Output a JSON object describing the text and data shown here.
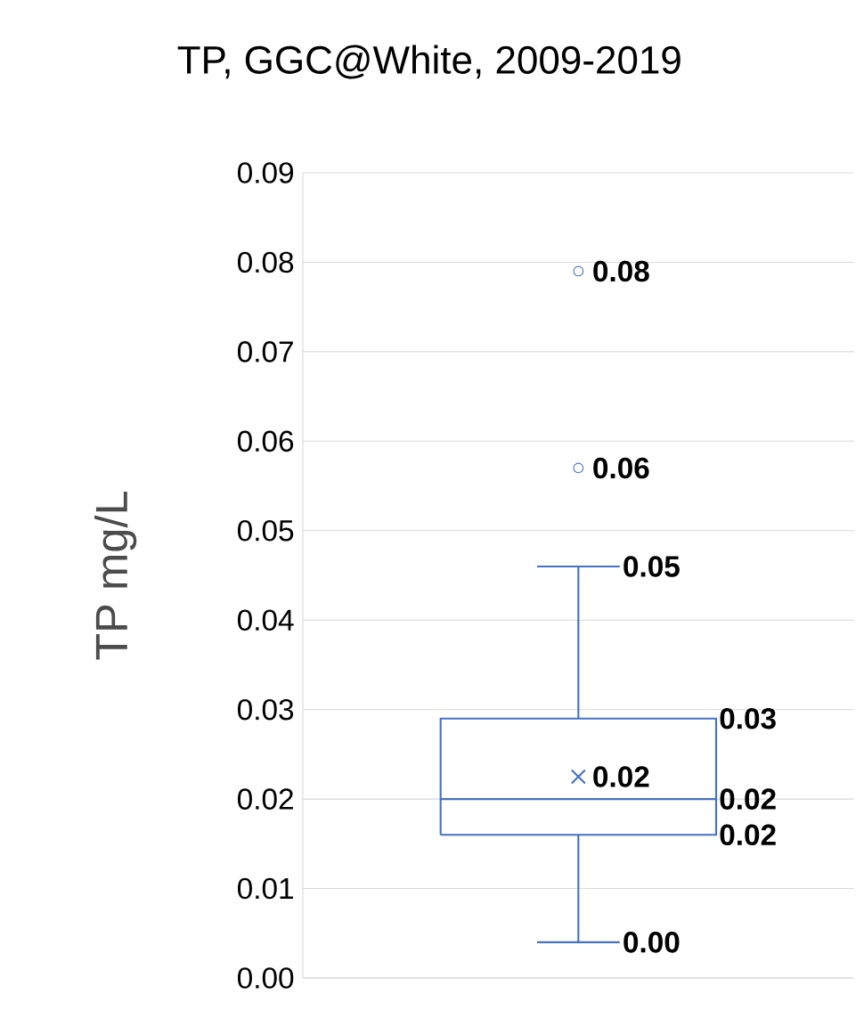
{
  "chart_data": {
    "type": "box",
    "title": "TP, GGC@White, 2009-2019",
    "ylabel": "TP mg/L",
    "categories": [
      null
    ],
    "series": [
      {
        "color": "#4472c4",
        "boxes": [
          {
            "low": 0.004,
            "q1": 0.016,
            "median": 0.02,
            "q3": 0.029,
            "high": 0.046,
            "mean": 0.0225,
            "outliers": [
              0.057,
              0.079
            ]
          }
        ]
      }
    ],
    "ylim": [
      0,
      0.09
    ],
    "yticks": [
      {
        "value": 0,
        "label": "0.00"
      },
      0.01,
      0.02,
      0.03,
      0.04,
      0.05,
      0.06,
      0.07,
      0.08,
      0.09
    ],
    "grid": "y",
    "annotations": [
      "0.08",
      "0.06",
      "0.05",
      "0.03",
      "0.02",
      "0.02",
      "0.02",
      "0.00"
    ]
  }
}
